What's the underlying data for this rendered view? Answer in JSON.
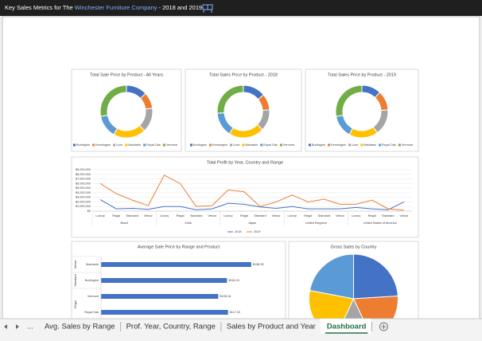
{
  "header": {
    "prefix": "Key Sales Metrics for The",
    "company": "Winchester Furniture Company",
    "suffix": "- 2018 and 2019"
  },
  "chart_data": [
    {
      "type": "donut",
      "title": "Total Sale Price by Product - All Years",
      "categories": [
        "Burlington",
        "Kensington",
        "Luxe",
        "Mandarin",
        "Royal Oak",
        "Vermont"
      ],
      "values": [
        13,
        10,
        15,
        20,
        14,
        28
      ],
      "colors": [
        "#4472c4",
        "#ed7d31",
        "#a5a5a5",
        "#ffc000",
        "#5b9bd5",
        "#70ad47"
      ]
    },
    {
      "type": "donut",
      "title": "Total Sales Price by Product - 2018",
      "categories": [
        "Burlington",
        "Kensington",
        "Luxe",
        "Mandarin",
        "Royal Oak",
        "Vermont"
      ],
      "values": [
        14,
        10,
        13,
        22,
        15,
        26
      ],
      "colors": [
        "#4472c4",
        "#ed7d31",
        "#a5a5a5",
        "#ffc000",
        "#5b9bd5",
        "#70ad47"
      ]
    },
    {
      "type": "donut",
      "title": "Total Sales Price by Product - 2019",
      "categories": [
        "Burlington",
        "Kensington",
        "Luxe",
        "Mandarin",
        "Royal Oak",
        "Vermont"
      ],
      "values": [
        12,
        12,
        16,
        18,
        14,
        28
      ],
      "colors": [
        "#4472c4",
        "#ed7d31",
        "#a5a5a5",
        "#ffc000",
        "#5b9bd5",
        "#70ad47"
      ]
    },
    {
      "type": "line",
      "title": "Total Profit by Year, Country and Range",
      "categories": [
        "Luxury",
        "Regal",
        "Standard",
        "Velour",
        "Luxury",
        "Regal",
        "Standard",
        "Velour",
        "Luxury",
        "Regal",
        "Standard",
        "Velour",
        "Luxury",
        "Regal",
        "Standard",
        "Velour",
        "Luxury",
        "Regal",
        "Standard",
        "Velour"
      ],
      "groups": [
        "Brazil",
        "India",
        "Japan",
        "United Kingdom",
        "United States of America"
      ],
      "series": [
        {
          "name": "2018",
          "color": "#4472c4",
          "values": [
            2500000,
            500000,
            600000,
            400000,
            1000000,
            1000000,
            300000,
            500000,
            1700000,
            1500000,
            900000,
            600000,
            1000000,
            500000,
            500000,
            500000,
            800000,
            500000,
            300000,
            2000000
          ]
        },
        {
          "name": "2019",
          "color": "#ed7d31",
          "values": [
            6000000,
            3800000,
            2400000,
            1200000,
            7800000,
            6000000,
            1000000,
            1200000,
            4600000,
            4200000,
            1000000,
            2000000,
            3500000,
            2000000,
            2600000,
            1500000,
            1500000,
            2400000,
            500000,
            200000
          ]
        }
      ],
      "ylim": [
        0,
        9000000
      ],
      "yticks": [
        {
          "value": 0,
          "label": "$0"
        },
        {
          "value": 1000000,
          "label": "$1,000,000"
        },
        {
          "value": 2000000,
          "label": "$2,000,000"
        },
        {
          "value": 3000000,
          "label": "$3,000,000"
        },
        {
          "value": 4000000,
          "label": "$4,000,000"
        },
        {
          "value": 5000000,
          "label": "$5,000,000"
        },
        {
          "value": 6000000,
          "label": "$6,000,000"
        },
        {
          "value": 7000000,
          "label": "$7,000,000"
        },
        {
          "value": 8000000,
          "label": "$8,000,000"
        },
        {
          "value": 9000000,
          "label": "$9,000,000"
        }
      ],
      "grid": true
    },
    {
      "type": "hbar",
      "title": "Average Sale Price by Range and Product",
      "color": "#4472c4",
      "xlim": [
        0,
        160
      ],
      "groups": [
        {
          "name": "Velour",
          "categories": [
            "Mandarin"
          ],
          "values": [
            138.59
          ],
          "value_labels": [
            "$138.59"
          ]
        },
        {
          "name": "Standard",
          "categories": [
            "Burlington"
          ],
          "values": [
            116.24
          ],
          "value_labels": [
            "$116.24"
          ]
        },
        {
          "name": "Regal",
          "categories": [
            "Vermont",
            "Royal Oak"
          ],
          "values": [
            108.18,
            117.2
          ],
          "value_labels": [
            "$108.18",
            "$117.20"
          ]
        }
      ]
    },
    {
      "type": "pie",
      "title": "Gross Sales by Country",
      "values": [
        24,
        19,
        14,
        21,
        22
      ],
      "colors": [
        "#4472c4",
        "#ed7d31",
        "#a5a5a5",
        "#ffc000",
        "#5b9bd5"
      ]
    }
  ],
  "tabs": {
    "overflow": "...",
    "sheets": [
      "Avg. Sales by Range",
      "Prof. Year, Country, Range",
      "Sales by Product and Year",
      "Dashboard"
    ],
    "active": 3
  }
}
